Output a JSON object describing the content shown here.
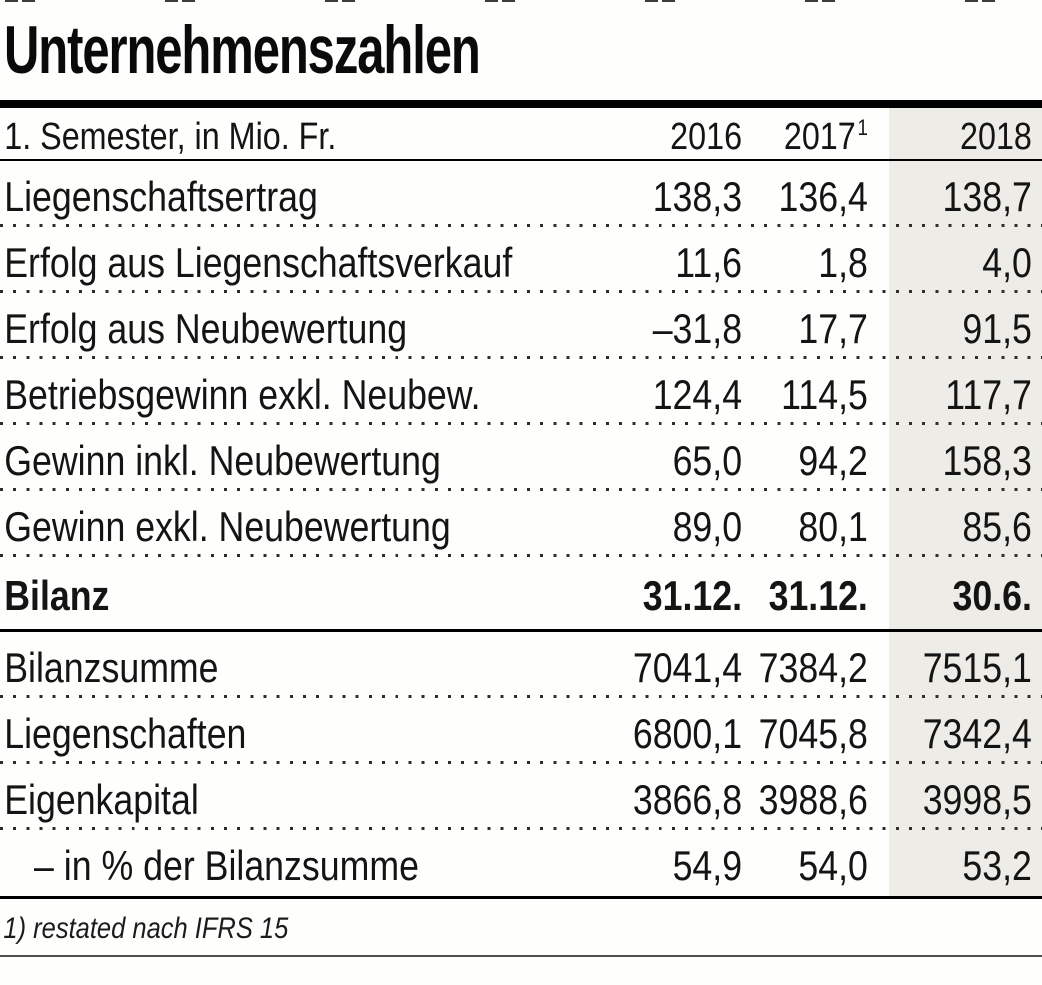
{
  "title": "Unternehmenszahlen",
  "table": {
    "header": {
      "label": "1. Semester, in Mio. Fr.",
      "col2016": "2016",
      "col2017": "2017",
      "col2017_footnote_mark": "1",
      "col2018": "2018"
    },
    "rows": [
      {
        "label": "Liegenschaftsertrag",
        "v2016": "138,3",
        "v2017": "136,4",
        "v2018": "138,7"
      },
      {
        "label": "Erfolg aus Liegenschaftsverkauf",
        "v2016": "11,6",
        "v2017": "1,8",
        "v2018": "4,0"
      },
      {
        "label": "Erfolg aus Neubewertung",
        "v2016": "–31,8",
        "v2017": "17,7",
        "v2018": "91,5"
      },
      {
        "label": "Betriebsgewinn exkl. Neubew.",
        "v2016": "124,4",
        "v2017": "114,5",
        "v2018": "117,7"
      },
      {
        "label": "Gewinn inkl. Neubewertung",
        "v2016": "65,0",
        "v2017": "94,2",
        "v2018": "158,3"
      },
      {
        "label": "Gewinn exkl. Neubewertung",
        "v2016": "89,0",
        "v2017": "80,1",
        "v2018": "85,6"
      }
    ],
    "bilanz_header": {
      "label": "Bilanz",
      "v2016": "31.12.",
      "v2017": "31.12.",
      "v2018": "30.6."
    },
    "bilanz_rows": [
      {
        "label": "Bilanzsumme",
        "v2016": "7041,4",
        "v2017": "7384,2",
        "v2018": "7515,1"
      },
      {
        "label": "Liegenschaften",
        "v2016": "6800,1",
        "v2017": "7045,8",
        "v2018": "7342,4"
      },
      {
        "label": "Eigenkapital",
        "v2016": "3866,8",
        "v2017": "3988,6",
        "v2018": "3998,5"
      },
      {
        "label": "– in % der Bilanzsumme",
        "v2016": "54,9",
        "v2017": "54,0",
        "v2018": "53,2"
      }
    ],
    "footnote": "1) restated nach IFRS 15"
  },
  "colors": {
    "highlight_column_2018": "#edece7",
    "text": "#141414",
    "rule": "#000000"
  }
}
